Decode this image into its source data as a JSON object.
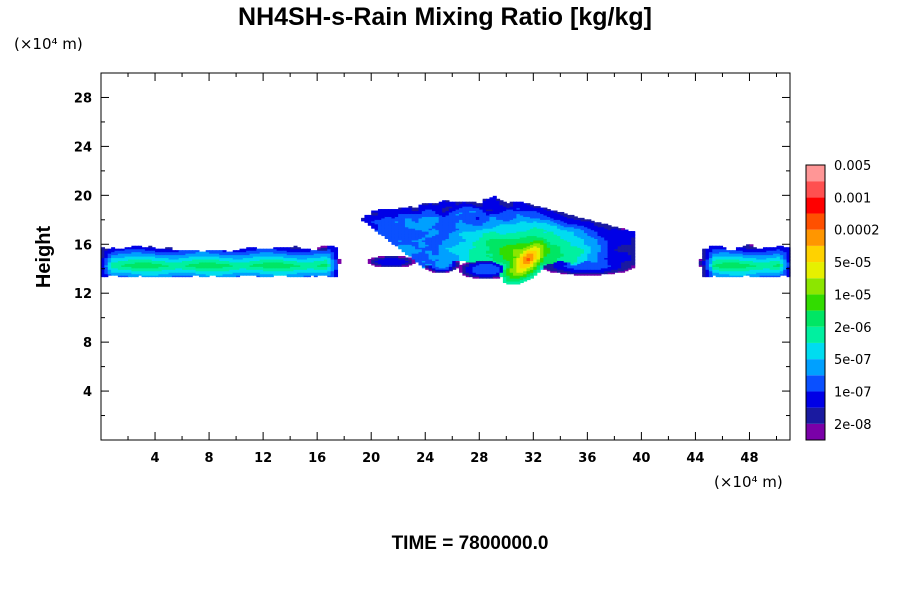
{
  "chart_data": {
    "type": "heatmap",
    "title": "NH4SH-s-Rain Mixing Ratio [kg/kg]",
    "xlabel": "(×10⁴ m)",
    "ylabel": "Height",
    "y_unit_label": "(×10⁴ m)",
    "xlim": [
      0,
      51
    ],
    "ylim": [
      0,
      30
    ],
    "x_ticks": [
      "4",
      "8",
      "12",
      "16",
      "20",
      "24",
      "28",
      "32",
      "36",
      "40",
      "44",
      "48"
    ],
    "x_tick_values": [
      4,
      8,
      12,
      16,
      20,
      24,
      28,
      32,
      36,
      40,
      44,
      48
    ],
    "y_ticks": [
      "4",
      "8",
      "12",
      "16",
      "20",
      "24",
      "28"
    ],
    "y_tick_values": [
      4,
      8,
      12,
      16,
      20,
      24,
      28
    ],
    "footer": "TIME = 7800000.0",
    "colorbar": {
      "colors": [
        "#7a00a8",
        "#1a1aa0",
        "#0000e6",
        "#0a50ff",
        "#00a0ff",
        "#00dcf0",
        "#00f0a0",
        "#00e664",
        "#32dc00",
        "#8ce600",
        "#e6f000",
        "#ffd200",
        "#ff9600",
        "#ff5000",
        "#ff0000",
        "#ff5050",
        "#ff9696"
      ],
      "labels": [
        "2e-08",
        "1e-07",
        "5e-07",
        "2e-06",
        "1e-05",
        "5e-05",
        "0.0002",
        "0.001",
        "0.005"
      ],
      "label_band_index": [
        1,
        3,
        5,
        7,
        9,
        11,
        13,
        15,
        17
      ]
    },
    "regions": [
      {
        "name": "left-layer",
        "x_range": [
          0,
          17.5
        ],
        "y_range": [
          13.5,
          16.2
        ],
        "max_level": 8
      },
      {
        "name": "central-cloud",
        "x_range": [
          18,
          40
        ],
        "y_range": [
          12.8,
          19.5
        ],
        "max_level": 13,
        "core_x": 32,
        "core_y": 14.5
      },
      {
        "name": "right-layer",
        "x_range": [
          44.5,
          51
        ],
        "y_range": [
          13.5,
          16.2
        ],
        "max_level": 8
      }
    ]
  }
}
